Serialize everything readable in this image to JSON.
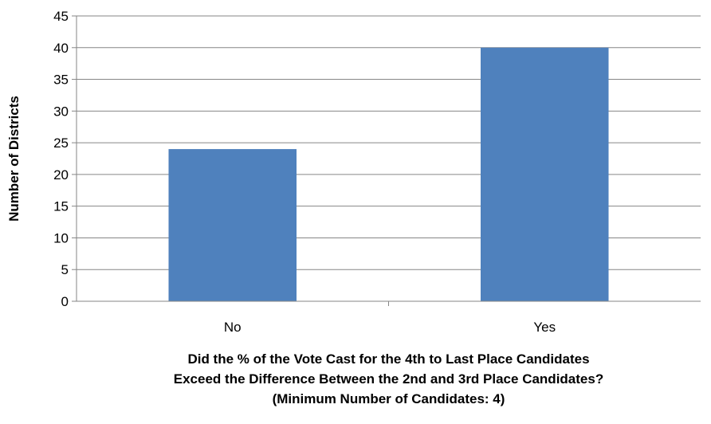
{
  "chart_data": {
    "type": "bar",
    "categories": [
      "No",
      "Yes"
    ],
    "values": [
      24,
      40
    ],
    "title": "",
    "ylabel": "Number of Districts",
    "xlabel_lines": [
      "Did the % of the Vote Cast for the 4th to Last Place Candidates",
      "Exceed the Difference Between the 2nd and 3rd Place Candidates?",
      "(Minimum Number of Candidates: 4)"
    ],
    "ylim": [
      0,
      45
    ],
    "yticks": [
      0,
      5,
      10,
      15,
      20,
      25,
      30,
      35,
      40,
      45
    ],
    "grid": true,
    "legend": "none",
    "bar_color": "#4f81bd",
    "grid_color": "#868686"
  }
}
